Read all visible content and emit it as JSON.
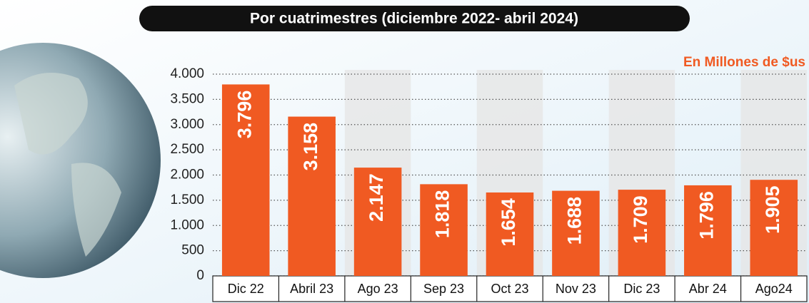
{
  "chart_data": {
    "type": "bar",
    "title": "Por cuatrimestres (diciembre 2022- abril 2024)",
    "unit_label": "En Millones de $us",
    "categories": [
      "Dic 22",
      "Abril 23",
      "Ago 23",
      "Sep 23",
      "Oct 23",
      "Nov 23",
      "Dic 23",
      "Abr 24",
      "Ago24"
    ],
    "values": [
      3796,
      3158,
      2147,
      1818,
      1654,
      1688,
      1709,
      1796,
      1905
    ],
    "value_labels": [
      "3.796",
      "3.158",
      "2.147",
      "1.818",
      "1.654",
      "1.688",
      "1.709",
      "1.796",
      "1.905"
    ],
    "color": "#f05a22",
    "ylim": [
      0,
      4000
    ],
    "yticks": [
      0,
      500,
      {
        "value": 1000,
        "label": "1.000"
      },
      {
        "value": 1500,
        "label": "1.500"
      },
      {
        "value": 2000,
        "label": "2.000"
      },
      {
        "value": 2500,
        "label": "2.500"
      },
      {
        "value": 3000,
        "label": "3.000"
      },
      {
        "value": 3500,
        "label": "3.500"
      },
      {
        "value": 4000,
        "label": "4.000"
      }
    ],
    "grid": true
  }
}
